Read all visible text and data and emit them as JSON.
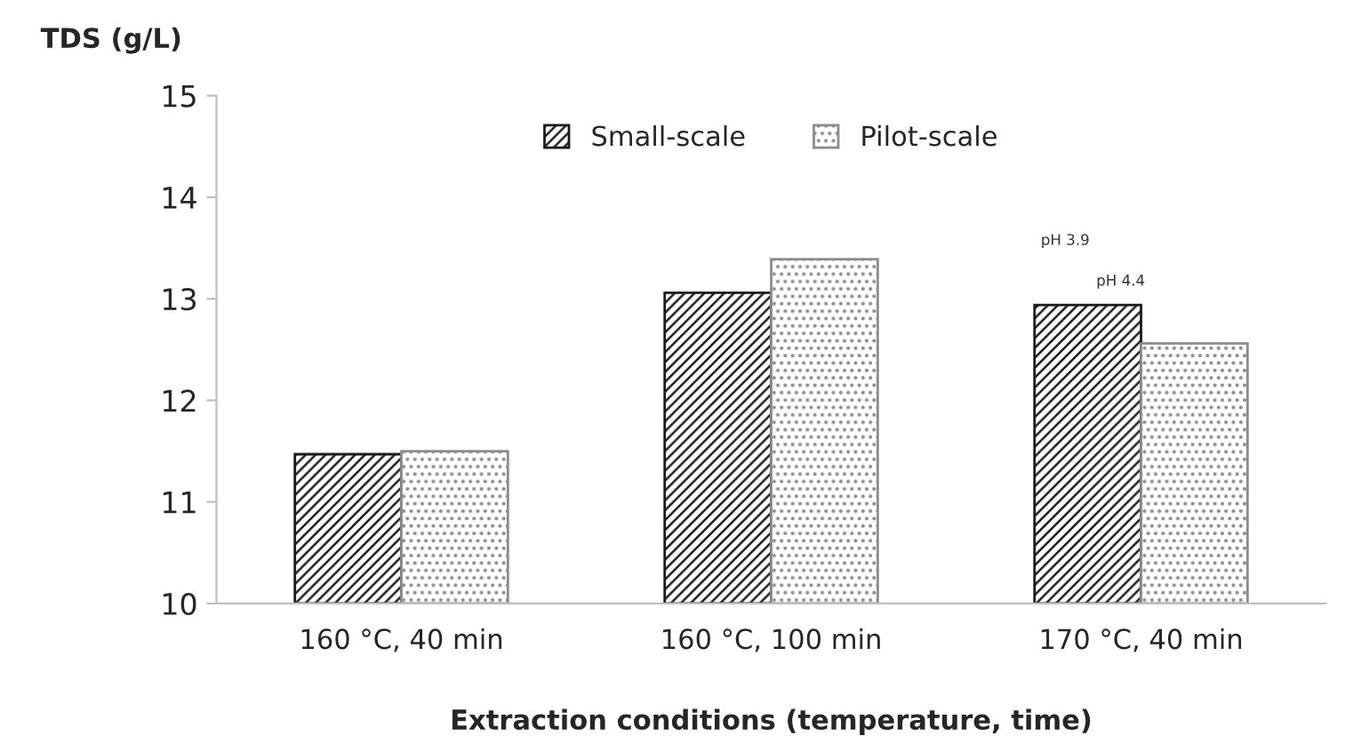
{
  "chart_data": {
    "type": "bar",
    "ylabel": "TDS (g/L)",
    "xlabel": "Extraction conditions (temperature, time)",
    "categories": [
      "160 °C, 40 min",
      "160 °C, 100 min",
      "170 °C, 40 min"
    ],
    "series": [
      {
        "name": "Small-scale",
        "color": "#1a1a1a",
        "values": [
          11.47,
          13.06,
          12.94
        ]
      },
      {
        "name": "Pilot-scale",
        "color": "#8c8c8c",
        "values": [
          11.5,
          13.39,
          12.56
        ]
      }
    ],
    "ylim": [
      10,
      15
    ],
    "yticks": [
      10,
      11,
      12,
      13,
      14,
      15
    ],
    "annotations": [
      "pH 3.9",
      "pH 4.4"
    ],
    "legend": "top",
    "grid": false
  }
}
